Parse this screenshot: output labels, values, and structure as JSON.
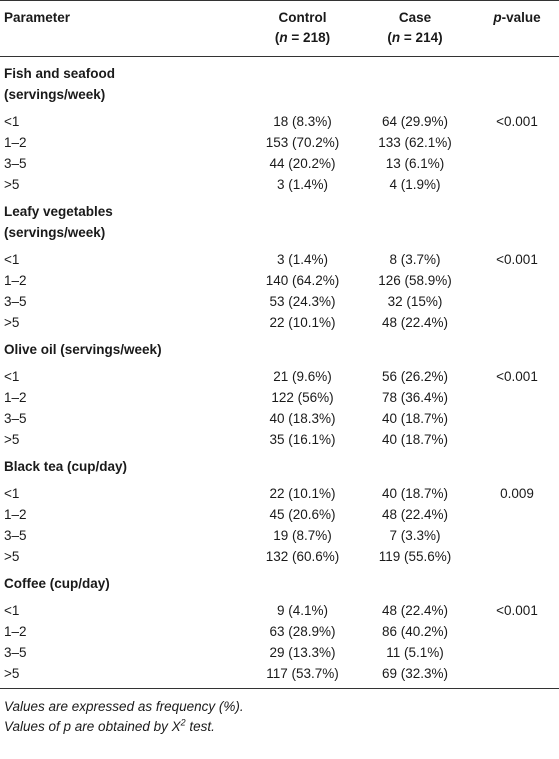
{
  "table": {
    "header": {
      "parameter": "Parameter",
      "control": {
        "label": "Control",
        "open": "(",
        "symbol": "n",
        "rest": " = 218)"
      },
      "case": {
        "label": "Case",
        "open": "(",
        "symbol": "n",
        "rest": " = 214)"
      },
      "p": {
        "symbol": "p",
        "rest": "-value"
      }
    },
    "sections": [
      {
        "title": [
          "Fish and seafood",
          "(servings/week)"
        ],
        "p_value": "<0.001",
        "rows": [
          [
            "<1",
            "18 (8.3%)",
            "64 (29.9%)"
          ],
          [
            "1–2",
            "153 (70.2%)",
            "133 (62.1%)"
          ],
          [
            "3–5",
            "44 (20.2%)",
            "13 (6.1%)"
          ],
          [
            ">5",
            "3 (1.4%)",
            "4 (1.9%)"
          ]
        ]
      },
      {
        "title": [
          "Leafy vegetables",
          "(servings/week)"
        ],
        "p_value": "<0.001",
        "rows": [
          [
            "<1",
            "3 (1.4%)",
            "8 (3.7%)"
          ],
          [
            "1–2",
            "140 (64.2%)",
            "126 (58.9%)"
          ],
          [
            "3–5",
            "53 (24.3%)",
            "32 (15%)"
          ],
          [
            ">5",
            "22 (10.1%)",
            "48 (22.4%)"
          ]
        ]
      },
      {
        "title": [
          "Olive oil (servings/week)"
        ],
        "p_value": "<0.001",
        "rows": [
          [
            "<1",
            "21 (9.6%)",
            "56 (26.2%)"
          ],
          [
            "1–2",
            "122 (56%)",
            "78 (36.4%)"
          ],
          [
            "3–5",
            "40 (18.3%)",
            "40 (18.7%)"
          ],
          [
            ">5",
            "35 (16.1%)",
            "40 (18.7%)"
          ]
        ]
      },
      {
        "title": [
          "Black tea (cup/day)"
        ],
        "p_value": "0.009",
        "rows": [
          [
            "<1",
            "22 (10.1%)",
            "40 (18.7%)"
          ],
          [
            "1–2",
            "45 (20.6%)",
            "48 (22.4%)"
          ],
          [
            "3–5",
            "19 (8.7%)",
            "7 (3.3%)"
          ],
          [
            ">5",
            "132 (60.6%)",
            "119 (55.6%)"
          ]
        ]
      },
      {
        "title": [
          "Coffee (cup/day)"
        ],
        "p_value": "<0.001",
        "rows": [
          [
            "<1",
            "9 (4.1%)",
            "48 (22.4%)"
          ],
          [
            "1–2",
            "63 (28.9%)",
            "86 (40.2%)"
          ],
          [
            "3–5",
            "29 (13.3%)",
            "11 (5.1%)"
          ],
          [
            ">5",
            "117 (53.7%)",
            "69 (32.3%)"
          ]
        ]
      }
    ]
  },
  "footnotes": [
    "Values are expressed as frequency (%).",
    {
      "text": "Values of p are obtained by X",
      "sup": "2",
      "rest": " test."
    }
  ]
}
